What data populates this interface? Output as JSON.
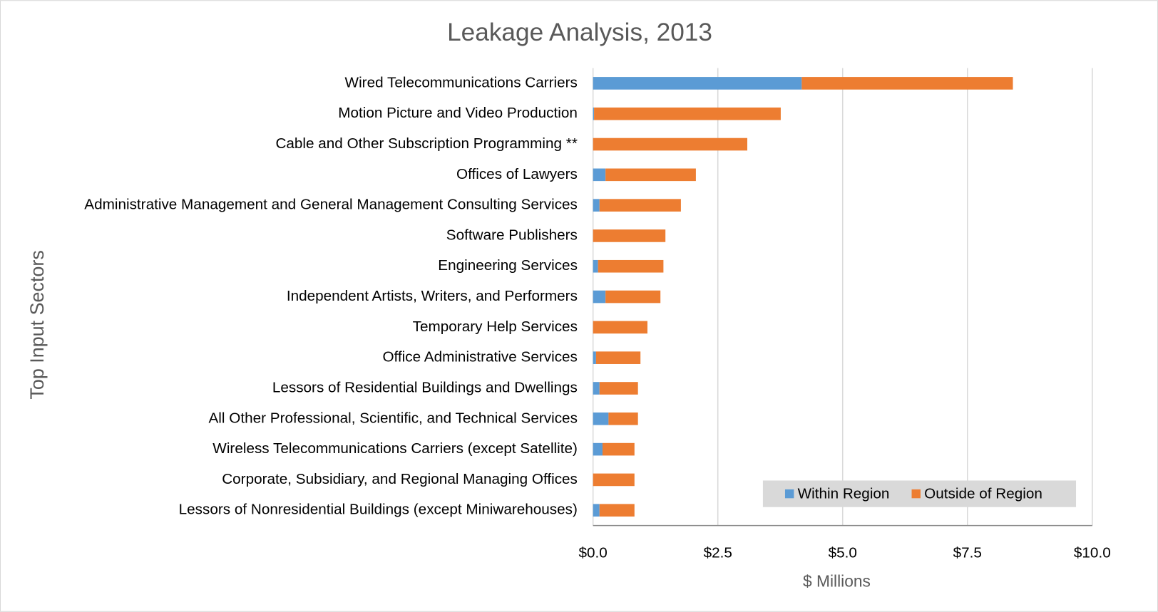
{
  "chart_data": {
    "type": "bar",
    "orientation": "horizontal",
    "stacked": true,
    "title": "Leakage Analysis, 2013",
    "x_label": "$ Millions",
    "y_label": "Top Input Sectors",
    "categories": [
      "Wired Telecommunications Carriers",
      "Motion Picture and Video Production",
      "Cable and Other Subscription Programming **",
      "Offices of Lawyers",
      "Administrative Management and General Management Consulting Services",
      "Software Publishers",
      "Engineering Services",
      "Independent Artists, Writers, and Performers",
      "Temporary Help Services",
      "Office Administrative Services",
      "Lessors of Residential Buildings and Dwellings",
      "All Other Professional, Scientific, and Technical Services",
      "Wireless Telecommunications Carriers (except Satellite)",
      "Corporate, Subsidiary, and Regional Managing Offices",
      "Lessors of Nonresidential Buildings (except Miniwarehouses)"
    ],
    "series": [
      {
        "name": "Within Region",
        "color": "#5b9bd5",
        "values": [
          4.18,
          0.02,
          0,
          0.25,
          0.13,
          0,
          0.1,
          0.25,
          0,
          0.06,
          0.13,
          0.31,
          0.19,
          0,
          0.13
        ]
      },
      {
        "name": "Outside of Region",
        "color": "#ed7d31",
        "values": [
          4.23,
          3.74,
          3.09,
          1.81,
          1.63,
          1.45,
          1.31,
          1.1,
          1.09,
          0.89,
          0.77,
          0.59,
          0.64,
          0.83,
          0.7
        ]
      }
    ],
    "xlim": [
      0,
      10
    ],
    "xticks": [
      {
        "value": 0,
        "label": "$0.0"
      },
      {
        "value": 2.5,
        "label": "$2.5"
      },
      {
        "value": 5,
        "label": "$5.0"
      },
      {
        "value": 7.5,
        "label": "$7.5"
      },
      {
        "value": 10,
        "label": "$10.0"
      }
    ],
    "grid": true,
    "legend": "lower right"
  }
}
